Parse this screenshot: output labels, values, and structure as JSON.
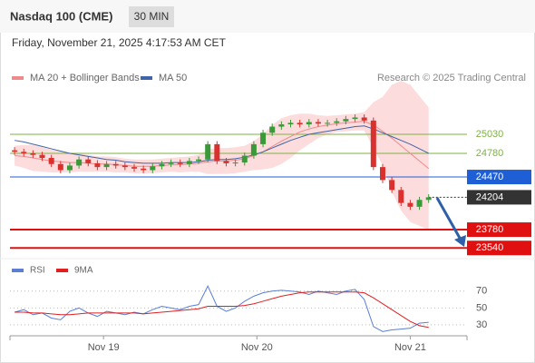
{
  "header": {
    "title": "Nasdaq 100 (CME)",
    "interval": "30 MIN",
    "timestamp": "Friday, November 21, 2025 4:17:53 AM CET",
    "credit": "Research © 2025 Trading Central"
  },
  "chart_data": [
    {
      "type": "candlestick",
      "x": [
        18.42,
        18.48,
        18.54,
        18.6,
        18.66,
        18.72,
        18.78,
        18.84,
        18.9,
        18.96,
        19.02,
        19.08,
        19.14,
        19.2,
        19.26,
        19.32,
        19.38,
        19.44,
        19.5,
        19.56,
        19.62,
        19.68,
        19.74,
        19.8,
        19.86,
        19.92,
        19.98,
        20.04,
        20.1,
        20.16,
        20.22,
        20.28,
        20.34,
        20.4,
        20.46,
        20.52,
        20.58,
        20.64,
        20.7,
        20.76,
        20.82,
        20.88,
        20.94,
        21.0,
        21.06,
        21.12
      ],
      "open": [
        24820,
        24800,
        24780,
        24760,
        24720,
        24640,
        24560,
        24620,
        24700,
        24650,
        24600,
        24640,
        24620,
        24600,
        24580,
        24560,
        24610,
        24640,
        24660,
        24640,
        24680,
        24700,
        24900,
        24680,
        24650,
        24660,
        24750,
        24900,
        25050,
        25130,
        25160,
        25180,
        25160,
        25190,
        25170,
        25180,
        25200,
        25230,
        25250,
        25210,
        24600,
        24430,
        24300,
        24130,
        24080,
        24170
      ],
      "high": [
        24860,
        24840,
        24820,
        24800,
        24760,
        24680,
        24660,
        24740,
        24740,
        24690,
        24680,
        24680,
        24660,
        24640,
        24620,
        24650,
        24680,
        24700,
        24700,
        24720,
        24740,
        24940,
        24940,
        24720,
        24700,
        24790,
        24940,
        25090,
        25170,
        25200,
        25220,
        25220,
        25230,
        25230,
        25220,
        25240,
        25270,
        25290,
        25290,
        25250,
        24640,
        24470,
        24340,
        24170,
        24210,
        24244
      ],
      "low": [
        24760,
        24740,
        24720,
        24680,
        24600,
        24520,
        24520,
        24580,
        24610,
        24560,
        24560,
        24580,
        24560,
        24540,
        24520,
        24520,
        24570,
        24600,
        24600,
        24600,
        24640,
        24660,
        24640,
        24610,
        24610,
        24620,
        24710,
        24860,
        25010,
        25090,
        25120,
        25120,
        25120,
        25130,
        25130,
        25140,
        25160,
        25190,
        25170,
        24560,
        24390,
        24260,
        24090,
        24040,
        24040,
        24130
      ],
      "close": [
        24800,
        24780,
        24760,
        24720,
        24640,
        24560,
        24620,
        24700,
        24650,
        24600,
        24640,
        24620,
        24600,
        24580,
        24560,
        24610,
        24640,
        24660,
        24640,
        24680,
        24700,
        24900,
        24680,
        24650,
        24660,
        24750,
        24900,
        25050,
        25130,
        25160,
        25180,
        25160,
        25190,
        25170,
        25180,
        25200,
        25230,
        25250,
        25210,
        24600,
        24430,
        24300,
        24130,
        24080,
        24170,
        24204
      ],
      "up_color": "#3a9a3a",
      "down_color": "#d9322e",
      "series": [
        {
          "name": "MA 20 + Bollinger Bands",
          "color": "#f08a8a",
          "values": [
            24750,
            24740,
            24720,
            24700,
            24680,
            24670,
            24660,
            24660,
            24650,
            24640,
            24640,
            24630,
            24620,
            24610,
            24610,
            24610,
            24620,
            24630,
            24630,
            24640,
            24650,
            24670,
            24680,
            24680,
            24690,
            24710,
            24750,
            24800,
            24870,
            24940,
            25000,
            25060,
            25100,
            25130,
            25150,
            25170,
            25180,
            25190,
            25200,
            25150,
            25070,
            24980,
            24880,
            24780,
            24680,
            24580
          ],
          "upper": [
            24880,
            24890,
            24890,
            24860,
            24830,
            24810,
            24790,
            24780,
            24760,
            24740,
            24740,
            24730,
            24710,
            24700,
            24700,
            24700,
            24710,
            24720,
            24730,
            24740,
            24760,
            24830,
            24850,
            24850,
            24860,
            24880,
            24940,
            25030,
            25150,
            25240,
            25280,
            25300,
            25300,
            25280,
            25270,
            25280,
            25290,
            25300,
            25320,
            25450,
            25520,
            25680,
            25730,
            25680,
            25530,
            25380
          ],
          "lower": [
            24620,
            24590,
            24550,
            24540,
            24530,
            24530,
            24530,
            24540,
            24540,
            24540,
            24540,
            24530,
            24530,
            24520,
            24520,
            24520,
            24530,
            24540,
            24530,
            24540,
            24540,
            24510,
            24510,
            24510,
            24520,
            24540,
            24560,
            24570,
            24590,
            24640,
            24720,
            24820,
            24900,
            24980,
            25030,
            25060,
            25070,
            25080,
            25080,
            24850,
            24620,
            24280,
            24030,
            23880,
            23830,
            23780
          ],
          "band_color": "#fbd3d3"
        },
        {
          "name": "MA 50",
          "color": "#3f64a8",
          "values": [
            24950,
            24930,
            24900,
            24870,
            24840,
            24810,
            24780,
            24760,
            24740,
            24720,
            24700,
            24690,
            24670,
            24660,
            24650,
            24650,
            24650,
            24660,
            24660,
            24660,
            24670,
            24690,
            24700,
            24700,
            24710,
            24730,
            24760,
            24800,
            24850,
            24900,
            24950,
            24990,
            25030,
            25050,
            25070,
            25090,
            25110,
            25130,
            25140,
            25100,
            25050,
            25000,
            24950,
            24900,
            24840,
            24780
          ]
        }
      ],
      "levels": [
        {
          "value": 25030,
          "color": "#7cb342",
          "box": false
        },
        {
          "value": 24780,
          "color": "#7cb342",
          "box": false
        },
        {
          "value": 24470,
          "color": "#1f5fd6",
          "box": true
        },
        {
          "value": 24204,
          "color": "#333333",
          "box": true,
          "dotted": true
        },
        {
          "value": 23780,
          "color": "#e01010",
          "box": true
        },
        {
          "value": 23540,
          "color": "#e01010",
          "box": true
        }
      ],
      "xlim": [
        18.39,
        21.37
      ],
      "ylim": [
        23400,
        25660
      ]
    },
    {
      "type": "line",
      "x": [
        18.42,
        18.48,
        18.54,
        18.6,
        18.66,
        18.72,
        18.78,
        18.84,
        18.9,
        18.96,
        19.02,
        19.08,
        19.14,
        19.2,
        19.26,
        19.32,
        19.38,
        19.44,
        19.5,
        19.56,
        19.62,
        19.68,
        19.74,
        19.8,
        19.86,
        19.92,
        19.98,
        20.04,
        20.1,
        20.16,
        20.22,
        20.28,
        20.34,
        20.4,
        20.46,
        20.52,
        20.58,
        20.64,
        20.7,
        20.76,
        20.82,
        20.88,
        20.94,
        21.0,
        21.06,
        21.12
      ],
      "series": [
        {
          "name": "RSI",
          "color": "#5b7fd6",
          "values": [
            45,
            48,
            42,
            44,
            38,
            36,
            46,
            50,
            44,
            40,
            46,
            44,
            42,
            45,
            43,
            48,
            52,
            50,
            48,
            52,
            54,
            76,
            52,
            46,
            50,
            58,
            64,
            68,
            70,
            71,
            70,
            69,
            66,
            70,
            68,
            66,
            70,
            72,
            60,
            28,
            22,
            24,
            25,
            26,
            32,
            33
          ]
        },
        {
          "name": "9MA",
          "color": "#e02020",
          "values": [
            45,
            45,
            44,
            44,
            43,
            42,
            42,
            43,
            44,
            44,
            44,
            44,
            44,
            44,
            43,
            44,
            45,
            46,
            47,
            48,
            49,
            52,
            52,
            52,
            52,
            53,
            55,
            58,
            61,
            64,
            66,
            68,
            69,
            69,
            69,
            69,
            69,
            69,
            68,
            62,
            55,
            48,
            41,
            34,
            29,
            27
          ]
        }
      ],
      "xlim": [
        18.39,
        21.37
      ],
      "ylim": [
        17,
        87
      ],
      "yticks": [
        70,
        50,
        30
      ],
      "xticks": [
        {
          "value": 19,
          "label": "Nov 19"
        },
        {
          "value": 20,
          "label": "Nov 20"
        },
        {
          "value": 21,
          "label": "Nov 21"
        }
      ]
    }
  ]
}
